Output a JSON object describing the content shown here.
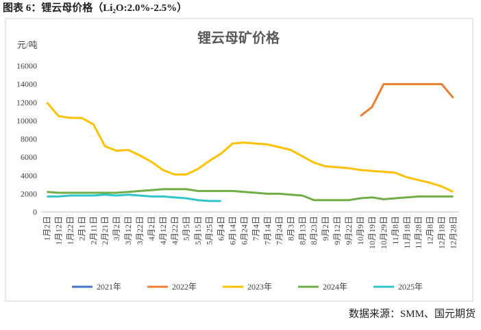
{
  "header": "图表 6：锂云母价格（Li₂O:2.0%-2.5%）",
  "source": "数据来源：SMM、国元期货",
  "chart_data": {
    "type": "line",
    "title": "锂云母矿价格",
    "y_label": "元/吨",
    "categories": [
      "1月2日",
      "1月12日",
      "1月22日",
      "2月1日",
      "2月11日",
      "2月21日",
      "3月2日",
      "3月12日",
      "3月22日",
      "4月2日",
      "4月12日",
      "4月22日",
      "5月5日",
      "5月15日",
      "5月25日",
      "6月4日",
      "6月14日",
      "6月24日",
      "7月4日",
      "7月14日",
      "7月24日",
      "8月3日",
      "8月13日",
      "8月23日",
      "9月2日",
      "9月12日",
      "9月22日",
      "10月9日",
      "10月19日",
      "10月29日",
      "11月8日",
      "11月18日",
      "11月28日",
      "12月8日",
      "12月18日",
      "12月28日"
    ],
    "series": [
      {
        "name": "2021年",
        "color": "#4472c4",
        "values": [
          null,
          null,
          null,
          null,
          null,
          null,
          null,
          null,
          null,
          null,
          null,
          null,
          null,
          null,
          null,
          null,
          null,
          null,
          null,
          null,
          null,
          null,
          null,
          null,
          null,
          null,
          null,
          null,
          null,
          null,
          null,
          null,
          null,
          null,
          null,
          null
        ]
      },
      {
        "name": "2022年",
        "color": "#ed7d31",
        "values": [
          null,
          null,
          null,
          null,
          null,
          null,
          null,
          null,
          null,
          null,
          null,
          null,
          null,
          null,
          null,
          null,
          null,
          null,
          null,
          null,
          null,
          null,
          null,
          null,
          null,
          null,
          null,
          10500,
          11500,
          14000,
          14000,
          14000,
          14000,
          14000,
          14000,
          12500
        ]
      },
      {
        "name": "2023年",
        "color": "#ffc000",
        "values": [
          12000,
          10500,
          10300,
          10300,
          9600,
          7200,
          6700,
          6800,
          6200,
          5500,
          4600,
          4100,
          4100,
          4700,
          5600,
          6400,
          7500,
          7600,
          7500,
          7400,
          7100,
          6800,
          6100,
          5400,
          5000,
          4900,
          4800,
          4600,
          4500,
          4400,
          4300,
          3800,
          3500,
          3200,
          2800,
          2200
        ]
      },
      {
        "name": "2024年",
        "color": "#70ad47",
        "values": [
          2200,
          2100,
          2100,
          2100,
          2100,
          2100,
          2100,
          2200,
          2300,
          2400,
          2500,
          2500,
          2500,
          2300,
          2300,
          2300,
          2300,
          2200,
          2100,
          2000,
          2000,
          1900,
          1800,
          1300,
          1300,
          1300,
          1300,
          1500,
          1600,
          1400,
          1500,
          1600,
          1700,
          1700,
          1700,
          1700
        ]
      },
      {
        "name": "2025年",
        "color": "#2fc5c9",
        "values": [
          1700,
          1700,
          1800,
          1800,
          1800,
          1900,
          1800,
          1900,
          1800,
          1700,
          1700,
          1600,
          1500,
          1300,
          1200,
          1200,
          null,
          null,
          null,
          null,
          null,
          null,
          null,
          null,
          null,
          null,
          null,
          null,
          null,
          null,
          null,
          null,
          null,
          null,
          null,
          null
        ]
      }
    ],
    "ylim": [
      0,
      16000
    ],
    "yticks": [
      0,
      2000,
      4000,
      6000,
      8000,
      10000,
      12000,
      14000,
      16000
    ],
    "legend": "bottom"
  }
}
